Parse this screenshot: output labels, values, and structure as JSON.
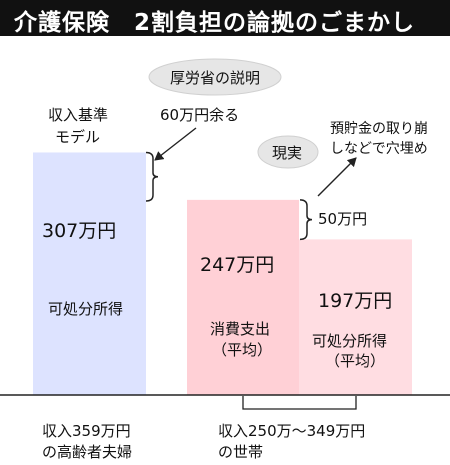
{
  "title": "介護保険　2割負担の論拠のごまかし",
  "colors": {
    "title_bg": "#111111",
    "title_text": "#ffffff",
    "model_bar": "#dde3ff",
    "household_bar": "#ffd0d6",
    "household_bar_back": "#ffdde2",
    "axis": "#222222"
  },
  "chart_data": {
    "type": "bar",
    "unit": "万円",
    "ylim": [
      0,
      330
    ],
    "bars": [
      {
        "group": "model",
        "value": 307,
        "value_label": "307万円",
        "label": "可処分所得"
      },
      {
        "group": "household",
        "value": 247,
        "value_label": "247万円",
        "label_line1": "消費支出",
        "label_line2": "（平均）"
      },
      {
        "group": "household",
        "value": 197,
        "value_label": "197万円",
        "label_line1": "可処分所得",
        "label_line2": "（平均）"
      }
    ],
    "categories": [
      {
        "line1": "収入359万円",
        "line2": "の高齢者夫婦"
      },
      {
        "line1": "収入250万～349万円",
        "line2": "の世帯"
      }
    ],
    "model_label_line1": "収入基準",
    "model_label_line2": "モデル",
    "annotations": {
      "ministry_cloud": "厚労省の説明",
      "ministry_claim": "60万円余る",
      "reality_cloud": "現実",
      "reality_note_line1": "預貯金の取り崩",
      "reality_note_line2": "しなどで穴埋め",
      "gap_label": "50万円"
    }
  }
}
